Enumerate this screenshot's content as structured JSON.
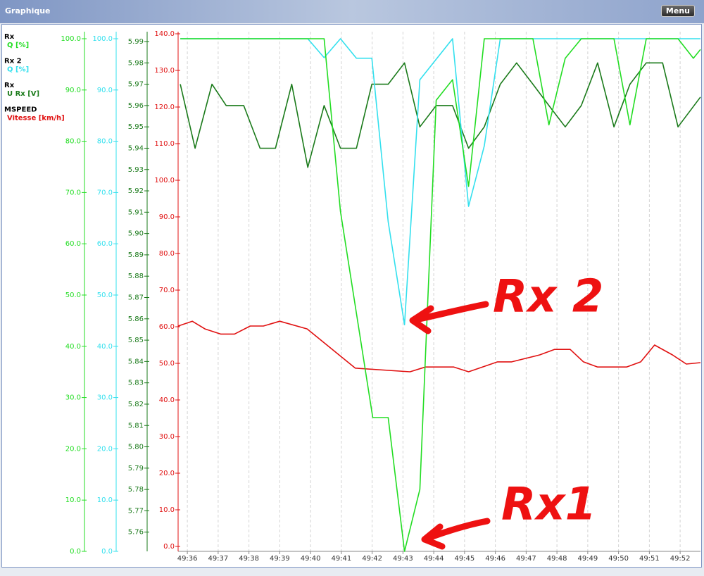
{
  "window": {
    "title": "Graphique",
    "menu_button": "Menu"
  },
  "chart_data": {
    "type": "line",
    "annotations": [
      "Rx 2",
      "Rx1"
    ],
    "xlim": [
      2975.7,
      2992.66
    ],
    "xticks": [
      {
        "value": 2976,
        "label": "49:36"
      },
      {
        "value": 2977,
        "label": "49:37"
      },
      {
        "value": 2978,
        "label": "49:38"
      },
      {
        "value": 2979,
        "label": "49:39"
      },
      {
        "value": 2980,
        "label": "49:40"
      },
      {
        "value": 2981,
        "label": "49:41"
      },
      {
        "value": 2982,
        "label": "49:42"
      },
      {
        "value": 2983,
        "label": "49:43"
      },
      {
        "value": 2984,
        "label": "49:44"
      },
      {
        "value": 2985,
        "label": "49:45"
      },
      {
        "value": 2986,
        "label": "49:46"
      },
      {
        "value": 2987,
        "label": "49:47"
      },
      {
        "value": 2988,
        "label": "49:48"
      },
      {
        "value": 2989,
        "label": "49:49"
      },
      {
        "value": 2990,
        "label": "49:50"
      },
      {
        "value": 2991,
        "label": "49:51"
      },
      {
        "value": 2992,
        "label": "49:52"
      }
    ],
    "grid": true,
    "ylim": [
      0,
      100
    ],
    "yticks": [
      {
        "value": 0,
        "label": "0.0"
      },
      {
        "value": 10,
        "label": "10.0"
      },
      {
        "value": 20,
        "label": "20.0"
      },
      {
        "value": 30,
        "label": "30.0"
      },
      {
        "value": 40,
        "label": "40.0"
      },
      {
        "value": 50,
        "label": "50.0"
      },
      {
        "value": 60,
        "label": "60.0"
      },
      {
        "value": 70,
        "label": "70.0"
      },
      {
        "value": 80,
        "label": "80.0"
      },
      {
        "value": 90,
        "label": "90.0"
      },
      {
        "value": 100,
        "label": "100.0"
      }
    ],
    "y2lim": [
      0,
      100
    ],
    "y2ticks": [
      {
        "value": 0,
        "label": "0.0"
      },
      {
        "value": 10,
        "label": "10.0"
      },
      {
        "value": 20,
        "label": "20.0"
      },
      {
        "value": 30,
        "label": "30.0"
      },
      {
        "value": 40,
        "label": "40.0"
      },
      {
        "value": 50,
        "label": "50.0"
      },
      {
        "value": 60,
        "label": "60.0"
      },
      {
        "value": 70,
        "label": "70.0"
      },
      {
        "value": 80,
        "label": "80.0"
      },
      {
        "value": 90,
        "label": "90.0"
      },
      {
        "value": 100,
        "label": "100.0"
      }
    ],
    "y3lim": [
      5.75,
      5.99
    ],
    "y3ticks": [
      5.76,
      5.77,
      5.78,
      5.79,
      {
        "value": 5.8,
        "label": "5.80"
      },
      5.81,
      5.82,
      5.83,
      5.84,
      5.85,
      5.86,
      5.87,
      5.88,
      5.89,
      {
        "value": 5.9,
        "label": "5.90"
      },
      5.91,
      5.92,
      5.93,
      5.94,
      5.95,
      5.96,
      5.97,
      5.98,
      5.99
    ],
    "y4lim": [
      0,
      140
    ],
    "y4ticks": [
      {
        "value": 0,
        "label": "0.0"
      },
      {
        "value": 10,
        "label": "10.0"
      },
      {
        "value": 20,
        "label": "20.0"
      },
      {
        "value": 30,
        "label": "30.0"
      },
      {
        "value": 40,
        "label": "40.0"
      },
      {
        "value": 50,
        "label": "50.0"
      },
      {
        "value": 60,
        "label": "60.0"
      },
      {
        "value": 70,
        "label": "70.0"
      },
      {
        "value": 80,
        "label": "80.0"
      },
      {
        "value": 90,
        "label": "90.0"
      },
      {
        "value": 100,
        "label": "100.0"
      },
      {
        "value": 110,
        "label": "110.0"
      },
      {
        "value": 120,
        "label": "120.0"
      },
      {
        "value": 130,
        "label": "130.0"
      },
      {
        "value": 140,
        "label": "140.0"
      }
    ],
    "series": [
      {
        "name": "Rx",
        "quantity": "Q [%]",
        "color": "#22dd22",
        "axis": "y",
        "x": [
          2975.77,
          2980.44,
          2980.97,
          2982.02,
          2982.52,
          2983.05,
          2983.55,
          2984.08,
          2984.61,
          2985.13,
          2985.64,
          2987.22,
          2987.74,
          2988.27,
          2988.79,
          2989.85,
          2990.37,
          2990.9,
          2991.93,
          2992.43,
          2992.66
        ],
        "values": [
          100,
          100,
          66.3,
          26.1,
          26.1,
          0,
          12.1,
          88,
          92,
          71.2,
          100,
          100,
          83.2,
          96.2,
          100,
          100,
          83.2,
          100,
          100,
          96.2,
          97.9
        ]
      },
      {
        "name": "Rx 2",
        "quantity": "Q [%]",
        "color": "#33e0ee",
        "axis": "y2",
        "x": [
          2975.77,
          2979.91,
          2980.44,
          2980.97,
          2981.49,
          2981.99,
          2982.52,
          2983.05,
          2983.55,
          2984.61,
          2985.13,
          2985.64,
          2986.16,
          2992.66
        ],
        "values": [
          100,
          100,
          96.3,
          100,
          96.2,
          96.2,
          64.3,
          44.2,
          92,
          100,
          67.3,
          79.1,
          100,
          100
        ]
      },
      {
        "name": "Rx",
        "quantity": "U Rx [V]",
        "color": "#1a7a1a",
        "axis": "y3",
        "x": [
          2975.77,
          2976.25,
          2976.8,
          2977.26,
          2977.83,
          2978.36,
          2978.86,
          2979.39,
          2979.91,
          2980.44,
          2980.97,
          2981.49,
          2981.99,
          2982.52,
          2983.05,
          2983.55,
          2984.08,
          2984.61,
          2985.13,
          2985.64,
          2986.16,
          2986.69,
          2987.22,
          2987.74,
          2988.27,
          2988.79,
          2989.32,
          2989.85,
          2990.37,
          2990.9,
          2991.43,
          2991.93,
          2992.66
        ],
        "values": [
          5.97,
          5.94,
          5.97,
          5.96,
          5.96,
          5.94,
          5.94,
          5.97,
          5.931,
          5.96,
          5.94,
          5.94,
          5.97,
          5.97,
          5.98,
          5.95,
          5.96,
          5.96,
          5.94,
          5.95,
          5.97,
          5.98,
          5.97,
          5.96,
          5.95,
          5.96,
          5.98,
          5.95,
          5.97,
          5.98,
          5.98,
          5.95,
          5.964
        ]
      },
      {
        "name": "MSPEED",
        "quantity": "Vitesse [km/h]",
        "color": "#e01010",
        "axis": "y4",
        "x": [
          2975.7,
          2976.16,
          2976.57,
          2977.08,
          2977.53,
          2978.04,
          2978.47,
          2979.0,
          2979.89,
          2981.45,
          2983.23,
          2983.73,
          2984.65,
          2985.13,
          2986.07,
          2986.53,
          2987.44,
          2987.92,
          2988.43,
          2988.86,
          2989.32,
          2990.26,
          2990.72,
          2991.17,
          2991.75,
          2992.2,
          2992.66
        ],
        "values": [
          60.2,
          61.5,
          59.4,
          58,
          58,
          60.2,
          60.2,
          61.5,
          59.4,
          48.7,
          47.7,
          49,
          49,
          47.7,
          50.4,
          50.4,
          52.3,
          53.8,
          53.8,
          50.4,
          49,
          49,
          50.4,
          55,
          52.3,
          49.8,
          50.2
        ]
      }
    ]
  }
}
